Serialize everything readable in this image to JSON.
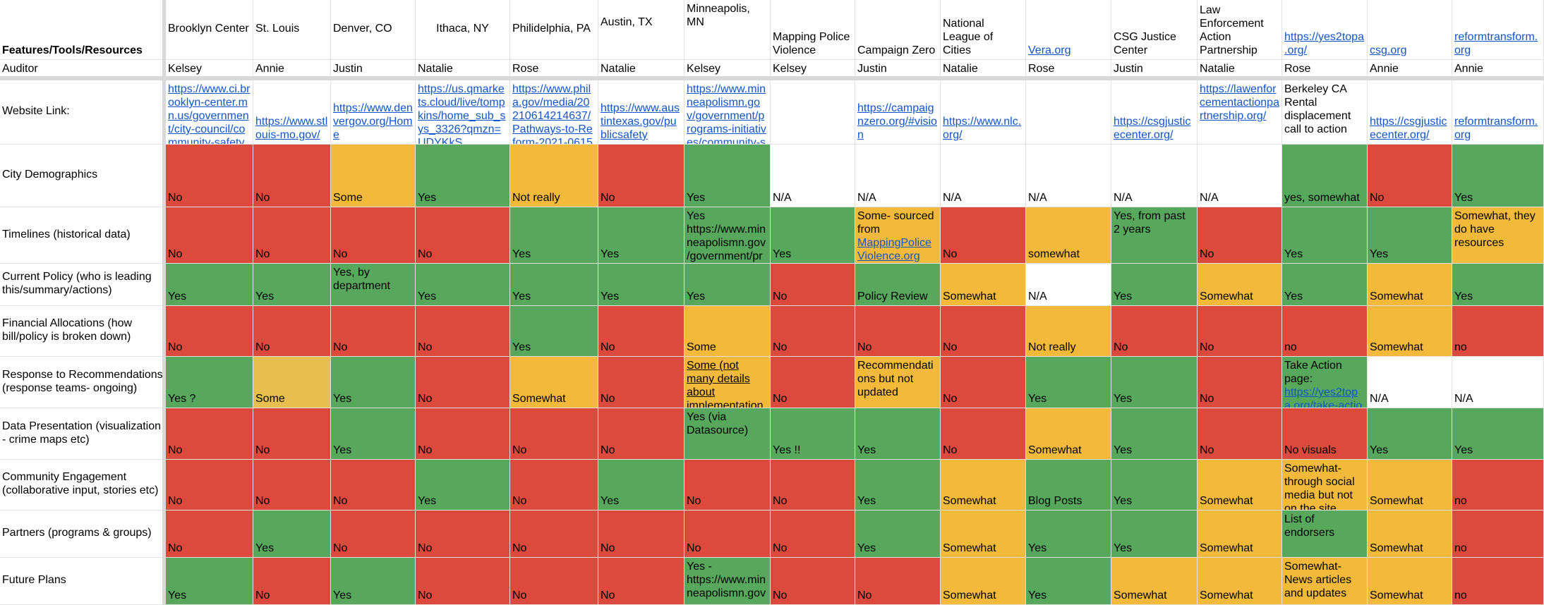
{
  "columns": [
    {
      "header": "Features/Tools/Resources",
      "auditor": "Auditor"
    },
    {
      "header": "Brooklyn Center",
      "auditor": "Kelsey"
    },
    {
      "header": "St. Louis",
      "auditor": "Annie"
    },
    {
      "header": "Denver, CO",
      "auditor": "Justin"
    },
    {
      "header": "Ithaca, NY",
      "auditor": "Natalie"
    },
    {
      "header": "Philidelphia, PA",
      "auditor": "Rose"
    },
    {
      "header": "Austin, TX",
      "auditor": "Natalie"
    },
    {
      "header": "Minneapolis, MN",
      "auditor": "Kelsey"
    },
    {
      "header": "Mapping Police Violence",
      "auditor": "Kelsey"
    },
    {
      "header": "Campaign Zero",
      "auditor": "Justin"
    },
    {
      "header": "National League of Cities",
      "auditor": "Natalie"
    },
    {
      "header": "Vera.org",
      "auditor": "Rose"
    },
    {
      "header": "CSG Justice Center",
      "auditor": "Justin"
    },
    {
      "header": "Law Enforcement Action Partnership",
      "auditor": "Natalie"
    },
    {
      "header": "https://yes2topa.org/",
      "auditor": "Rose"
    },
    {
      "header": "csg.org",
      "auditor": "Annie"
    },
    {
      "header": "reformtransform.org",
      "auditor": "Annie"
    }
  ],
  "rows": [
    {
      "label": "Website Link:",
      "cells": [
        {
          "text": "https://www.ci.brooklyn-center.mn.us/government/city-council/community-safety",
          "color": "#ffffff"
        },
        {
          "text": "https://www.stlouis-mo.gov/",
          "color": "#ffffff"
        },
        {
          "text": "https://www.denvergov.org/Home",
          "color": "#ffffff"
        },
        {
          "text": "https://us.qmarkets.cloud/live/tompkins/home_sub_sys_3326?qmzn=UDYKkS",
          "color": "#ffffff"
        },
        {
          "text": "https://www.phila.gov/media/20210614214637/Pathways-to-Reform-2021-06152",
          "color": "#ffffff"
        },
        {
          "text": "https://www.austintexas.gov/publicsafety",
          "color": "#ffffff"
        },
        {
          "text": "https://www.minneapolismn.gov/government/programs-initiatives/community-s",
          "color": "#ffffff"
        },
        {
          "text": "",
          "color": "#ffffff"
        },
        {
          "text": "https://campaignzero.org/#vision",
          "color": "#ffffff"
        },
        {
          "text": "https://www.nlc.org/",
          "color": "#ffffff"
        },
        {
          "text": "",
          "color": "#ffffff"
        },
        {
          "text": "https://csgjusticecenter.org/",
          "color": "#ffffff"
        },
        {
          "text": "https://lawenforcementactionpartnership.org/",
          "color": "#ffffff"
        },
        {
          "text": "Berkeley CA Rental displacement call to action",
          "color": "#ffffff"
        },
        {
          "text": "https://csgjusticecenter.org/",
          "color": "#ffffff"
        },
        {
          "text": "reformtransform.org",
          "color": "#ffffff"
        }
      ]
    },
    {
      "label": "City Demographics",
      "cells": [
        {
          "text": "No",
          "color": "#db4a3c"
        },
        {
          "text": "No",
          "color": "#db4a3c"
        },
        {
          "text": "Some",
          "color": "#f2b93b"
        },
        {
          "text": "Yes",
          "color": "#57a85d"
        },
        {
          "text": "Not really",
          "color": "#f2b93b"
        },
        {
          "text": "No",
          "color": "#db4a3c"
        },
        {
          "text": "Yes",
          "color": "#57a85d"
        },
        {
          "text": "N/A",
          "color": "#ffffff"
        },
        {
          "text": "N/A",
          "color": "#ffffff"
        },
        {
          "text": "N/A",
          "color": "#ffffff"
        },
        {
          "text": "N/A",
          "color": "#ffffff"
        },
        {
          "text": "N/A",
          "color": "#ffffff"
        },
        {
          "text": "N/A",
          "color": "#ffffff"
        },
        {
          "text": "yes, somewhat",
          "color": "#57a85d"
        },
        {
          "text": "No",
          "color": "#db4a3c"
        },
        {
          "text": "Yes",
          "color": "#57a85d"
        }
      ]
    },
    {
      "label": "Timelines (historical data)",
      "cells": [
        {
          "text": "No",
          "color": "#db4a3c"
        },
        {
          "text": "No",
          "color": "#db4a3c"
        },
        {
          "text": "No",
          "color": "#db4a3c"
        },
        {
          "text": "No",
          "color": "#db4a3c"
        },
        {
          "text": "Yes",
          "color": "#57a85d"
        },
        {
          "text": "Yes",
          "color": "#57a85d"
        },
        {
          "text": "Yes https://www.minneapolismn.gov/government/pr",
          "color": "#57a85d"
        },
        {
          "text": "Yes",
          "color": "#57a85d"
        },
        {
          "text": "Some- sourced from ",
          "link": "MappingPoliceViolence.org",
          "color": "#f2b93b"
        },
        {
          "text": "No",
          "color": "#db4a3c"
        },
        {
          "text": "somewhat",
          "color": "#f2b93b"
        },
        {
          "text": "Yes, from past 2 years",
          "color": "#57a85d"
        },
        {
          "text": "No",
          "color": "#db4a3c"
        },
        {
          "text": "Yes",
          "color": "#57a85d"
        },
        {
          "text": "Yes",
          "color": "#57a85d"
        },
        {
          "text": "Somewhat, they do have resources",
          "color": "#f2b93b"
        }
      ]
    },
    {
      "label": "Current Policy (who is leading this/summary/actions)",
      "cells": [
        {
          "text": "Yes",
          "color": "#57a85d"
        },
        {
          "text": "Yes",
          "color": "#57a85d"
        },
        {
          "text": "Yes, by department",
          "color": "#57a85d"
        },
        {
          "text": "Yes",
          "color": "#57a85d"
        },
        {
          "text": "Yes",
          "color": "#57a85d"
        },
        {
          "text": "Yes",
          "color": "#57a85d"
        },
        {
          "text": "Yes",
          "color": "#57a85d"
        },
        {
          "text": "No",
          "color": "#db4a3c"
        },
        {
          "text": "Policy Review",
          "color": "#57a85d"
        },
        {
          "text": "Somewhat",
          "color": "#f2b93b"
        },
        {
          "text": "N/A",
          "color": "#ffffff"
        },
        {
          "text": "Yes",
          "color": "#57a85d"
        },
        {
          "text": "Somewhat",
          "color": "#f2b93b"
        },
        {
          "text": "Yes",
          "color": "#57a85d"
        },
        {
          "text": "Somewhat",
          "color": "#f2b93b"
        },
        {
          "text": "Yes",
          "color": "#57a85d"
        }
      ]
    },
    {
      "label": "Financial Allocations (how bill/policy is broken down)",
      "cells": [
        {
          "text": "No",
          "color": "#db4a3c"
        },
        {
          "text": "No",
          "color": "#db4a3c"
        },
        {
          "text": "No",
          "color": "#db4a3c"
        },
        {
          "text": "No",
          "color": "#db4a3c"
        },
        {
          "text": "Yes",
          "color": "#57a85d"
        },
        {
          "text": "No",
          "color": "#db4a3c"
        },
        {
          "text": "Some",
          "color": "#f2b93b"
        },
        {
          "text": "No",
          "color": "#db4a3c"
        },
        {
          "text": "No",
          "color": "#db4a3c"
        },
        {
          "text": "No",
          "color": "#db4a3c"
        },
        {
          "text": "Not really",
          "color": "#f2b93b"
        },
        {
          "text": "No",
          "color": "#db4a3c"
        },
        {
          "text": "No",
          "color": "#db4a3c"
        },
        {
          "text": "no",
          "color": "#db4a3c"
        },
        {
          "text": "Somewhat",
          "color": "#f2b93b"
        },
        {
          "text": "no",
          "color": "#db4a3c"
        }
      ]
    },
    {
      "label": "Response to Recommendations (response teams- ongoing)",
      "cells": [
        {
          "text": "Yes ?",
          "color": "#57a85d"
        },
        {
          "text": "Some",
          "color": "#e6bf4f"
        },
        {
          "text": "Yes",
          "color": "#57a85d"
        },
        {
          "text": "No",
          "color": "#db4a3c"
        },
        {
          "text": "Somewhat",
          "color": "#f2b93b"
        },
        {
          "text": "No",
          "color": "#db4a3c"
        },
        {
          "text": "Some (not many details about implementation",
          "color": "#f2b93b",
          "underline": true
        },
        {
          "text": "No",
          "color": "#db4a3c"
        },
        {
          "text": "Recommendations but not updated",
          "color": "#f2b93b"
        },
        {
          "text": "No",
          "color": "#db4a3c"
        },
        {
          "text": "Yes",
          "color": "#57a85d"
        },
        {
          "text": "Yes",
          "color": "#57a85d"
        },
        {
          "text": "No",
          "color": "#db4a3c"
        },
        {
          "text": "Take Action page: ",
          "link": "https://yes2topa.org/take-actio",
          "color": "#57a85d"
        },
        {
          "text": "N/A",
          "color": "#ffffff"
        },
        {
          "text": "N/A",
          "color": "#ffffff"
        }
      ]
    },
    {
      "label": "Data Presentation (visualization - crime maps etc)",
      "cells": [
        {
          "text": "No",
          "color": "#db4a3c"
        },
        {
          "text": "No",
          "color": "#db4a3c"
        },
        {
          "text": "Yes",
          "color": "#57a85d"
        },
        {
          "text": "No",
          "color": "#db4a3c"
        },
        {
          "text": "No",
          "color": "#db4a3c"
        },
        {
          "text": "No",
          "color": "#db4a3c"
        },
        {
          "text": "Yes (via Datasource)",
          "color": "#57a85d"
        },
        {
          "text": "Yes !!",
          "color": "#57a85d"
        },
        {
          "text": "Yes",
          "color": "#57a85d"
        },
        {
          "text": "No",
          "color": "#db4a3c"
        },
        {
          "text": "Somewhat",
          "color": "#f2b93b"
        },
        {
          "text": "Yes",
          "color": "#57a85d"
        },
        {
          "text": "No",
          "color": "#db4a3c"
        },
        {
          "text": "No visuals",
          "color": "#db4a3c"
        },
        {
          "text": "Yes",
          "color": "#57a85d"
        },
        {
          "text": "Yes",
          "color": "#57a85d"
        }
      ]
    },
    {
      "label": "Community Engagement (collaborative input, stories etc)",
      "cells": [
        {
          "text": "No",
          "color": "#db4a3c"
        },
        {
          "text": "No",
          "color": "#db4a3c"
        },
        {
          "text": "No",
          "color": "#db4a3c"
        },
        {
          "text": "Yes",
          "color": "#57a85d"
        },
        {
          "text": "No",
          "color": "#db4a3c"
        },
        {
          "text": "Yes",
          "color": "#57a85d"
        },
        {
          "text": "No",
          "color": "#db4a3c"
        },
        {
          "text": "No",
          "color": "#db4a3c"
        },
        {
          "text": "Yes",
          "color": "#57a85d"
        },
        {
          "text": "Somewhat",
          "color": "#f2b93b"
        },
        {
          "text": "Blog Posts",
          "color": "#57a85d"
        },
        {
          "text": "Yes",
          "color": "#57a85d"
        },
        {
          "text": "Somewhat",
          "color": "#f2b93b"
        },
        {
          "text": "Somewhat-through social media but not on the site",
          "color": "#f2b93b"
        },
        {
          "text": "Somewhat",
          "color": "#f2b93b"
        },
        {
          "text": "no",
          "color": "#db4a3c"
        }
      ]
    },
    {
      "label": "Partners (programs & groups)",
      "cells": [
        {
          "text": "No",
          "color": "#db4a3c"
        },
        {
          "text": "Yes",
          "color": "#57a85d"
        },
        {
          "text": "No",
          "color": "#db4a3c"
        },
        {
          "text": "No",
          "color": "#db4a3c"
        },
        {
          "text": "No",
          "color": "#db4a3c"
        },
        {
          "text": "No",
          "color": "#db4a3c"
        },
        {
          "text": "No",
          "color": "#db4a3c"
        },
        {
          "text": "No",
          "color": "#db4a3c"
        },
        {
          "text": "Yes",
          "color": "#57a85d"
        },
        {
          "text": "Somewhat",
          "color": "#f2b93b"
        },
        {
          "text": "Yes",
          "color": "#57a85d"
        },
        {
          "text": "Yes",
          "color": "#57a85d"
        },
        {
          "text": "Somewhat",
          "color": "#f2b93b"
        },
        {
          "text": "List of endorsers",
          "color": "#57a85d"
        },
        {
          "text": "Somewhat",
          "color": "#f2b93b"
        },
        {
          "text": "no",
          "color": "#db4a3c"
        }
      ]
    },
    {
      "label": "Future Plans",
      "cells": [
        {
          "text": "Yes",
          "color": "#57a85d"
        },
        {
          "text": "No",
          "color": "#db4a3c"
        },
        {
          "text": "Yes",
          "color": "#57a85d"
        },
        {
          "text": "No",
          "color": "#db4a3c"
        },
        {
          "text": "No",
          "color": "#db4a3c"
        },
        {
          "text": "No",
          "color": "#db4a3c"
        },
        {
          "text": "Yes - https://www.minneapolismn.gov",
          "color": "#57a85d"
        },
        {
          "text": "No",
          "color": "#db4a3c"
        },
        {
          "text": "No",
          "color": "#db4a3c"
        },
        {
          "text": "Somewhat",
          "color": "#f2b93b"
        },
        {
          "text": "Yes",
          "color": "#57a85d"
        },
        {
          "text": "Somewhat",
          "color": "#f2b93b"
        },
        {
          "text": "Somewhat",
          "color": "#f2b93b"
        },
        {
          "text": "Somewhat- News articles and updates",
          "color": "#f2b93b"
        },
        {
          "text": "Somewhat",
          "color": "#f2b93b"
        },
        {
          "text": "no",
          "color": "#db4a3c"
        }
      ]
    }
  ]
}
